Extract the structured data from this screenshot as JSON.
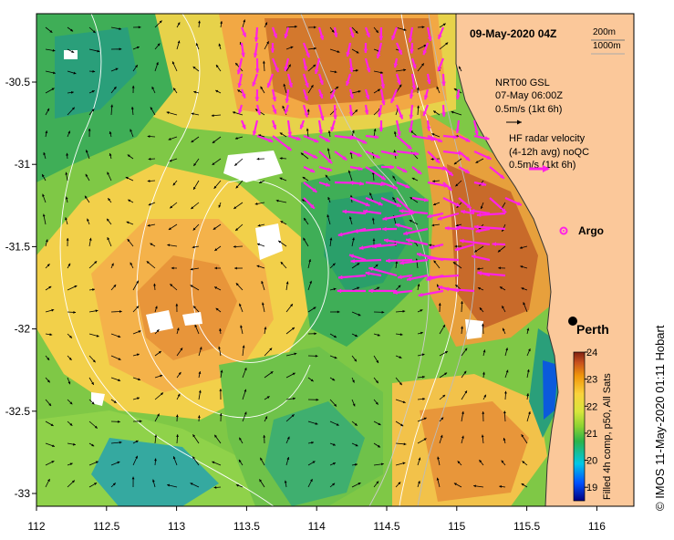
{
  "title": "09-May-2020 04Z",
  "contour_legend": {
    "label_1": "200m",
    "label_2": "1000m"
  },
  "current_legend": {
    "line_1": "NRT00 GSL",
    "line_2": "07-May 06:00Z",
    "line_3": "0.5m/s (1kt 6h)"
  },
  "radar_legend": {
    "line_1": "HF radar velocity",
    "line_2": "(4-12h avg) noQC",
    "line_3": "0.5m/s (1kt 6h)"
  },
  "argo_label": "Argo",
  "city_label": "Perth",
  "colorbar": {
    "title": "Filled 4h comp, p50, All Sats",
    "ticks": [
      "24",
      "23",
      "22",
      "21",
      "20",
      "19"
    ],
    "range": [
      18.5,
      24
    ]
  },
  "credit": "© IMOS 11-May-2020 01:11 Hobart",
  "x_ticks": [
    "112",
    "112.5",
    "113",
    "113.5",
    "114",
    "114.5",
    "115",
    "115.5",
    "116"
  ],
  "y_ticks": [
    "-30.5",
    "-31",
    "-31.5",
    "-32",
    "-32.5",
    "-33"
  ],
  "colors": {
    "land": "#fbc89a",
    "radar_vector": "#ff22e6",
    "argo": "#ff22e6",
    "contour": "#ffffff"
  }
}
